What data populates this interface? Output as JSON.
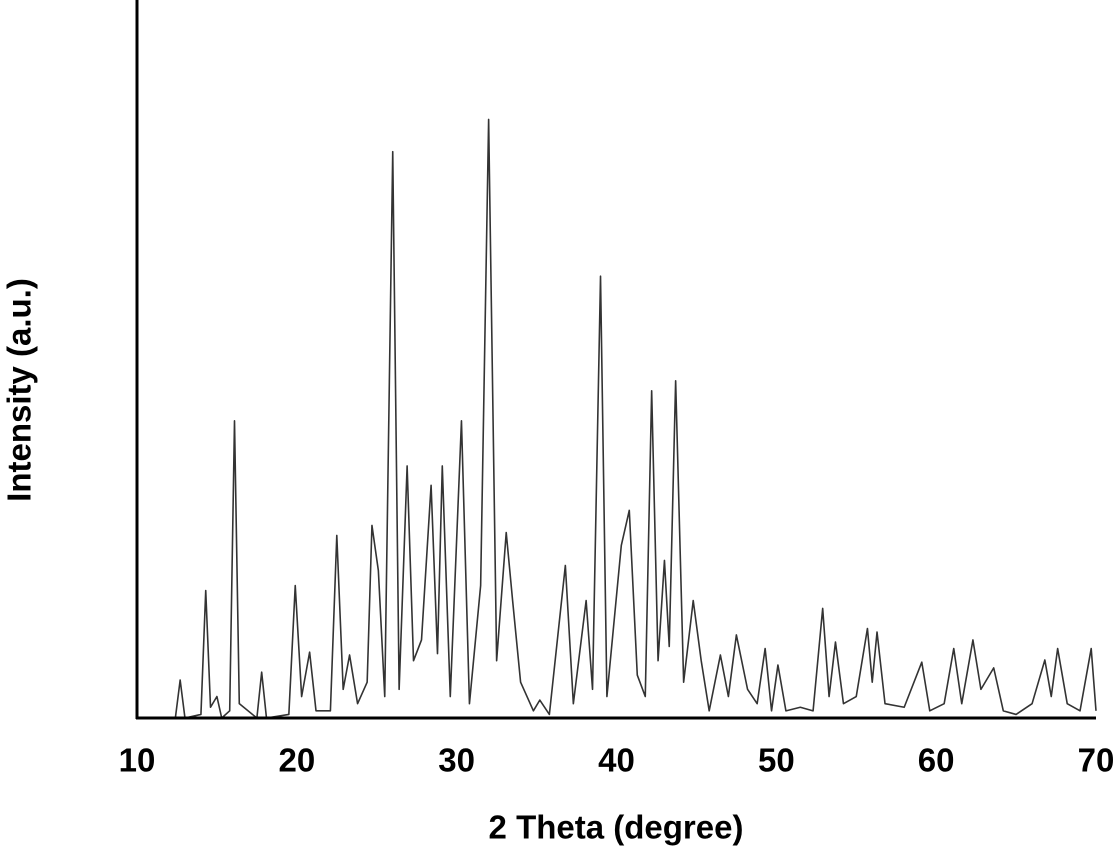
{
  "chart_data": {
    "type": "line",
    "x_label": "2 Theta (degree)",
    "y_label": "Intensity (a.u.)",
    "color": "#333333",
    "xlim": [
      10,
      70
    ],
    "xticks": [
      10,
      20,
      30,
      40,
      50,
      60,
      70
    ],
    "ylim": [
      0,
      100
    ],
    "x": [
      10,
      12.4,
      12.7,
      13.0,
      14.0,
      14.3,
      14.6,
      15.0,
      15.3,
      15.8,
      16.1,
      16.4,
      17.5,
      17.8,
      18.1,
      19.5,
      19.9,
      20.3,
      20.8,
      21.2,
      22.1,
      22.5,
      22.9,
      23.3,
      23.8,
      24.4,
      24.7,
      25.1,
      25.5,
      26.0,
      26.4,
      26.9,
      27.3,
      27.8,
      28.4,
      28.8,
      29.1,
      29.6,
      30.3,
      30.8,
      31.5,
      32.0,
      32.5,
      33.1,
      33.5,
      34.0,
      34.8,
      35.2,
      35.8,
      36.8,
      37.3,
      38.1,
      38.5,
      39.0,
      39.4,
      40.3,
      40.8,
      41.3,
      41.8,
      42.2,
      42.6,
      43.0,
      43.3,
      43.7,
      44.2,
      44.8,
      45.3,
      45.8,
      46.5,
      47.0,
      47.5,
      48.2,
      48.8,
      49.3,
      49.7,
      50.1,
      50.6,
      51.5,
      52.3,
      52.9,
      53.3,
      53.7,
      54.2,
      55.0,
      55.7,
      56.0,
      56.3,
      56.8,
      58.0,
      59.1,
      59.6,
      60.5,
      61.1,
      61.6,
      62.3,
      62.8,
      63.6,
      64.2,
      65.0,
      66.0,
      66.8,
      67.2,
      67.6,
      68.2,
      69.0,
      69.7,
      70
    ],
    "values": [
      0,
      0,
      5.3,
      0,
      0.5,
      17.8,
      1.5,
      3,
      0,
      1,
      41.5,
      2,
      0,
      6.4,
      0,
      0.5,
      18.5,
      3,
      9.2,
      1,
      1,
      25.5,
      4,
      8.8,
      2,
      5,
      26.9,
      20.6,
      3,
      79.1,
      4,
      35.2,
      8,
      10.9,
      32.5,
      9,
      35.2,
      3,
      41.5,
      2,
      18.5,
      83.6,
      8,
      25.9,
      16.4,
      5,
      1,
      2.5,
      0.5,
      21.3,
      2,
      16.4,
      4,
      61.7,
      3,
      24.1,
      29.0,
      6,
      3,
      45.7,
      8,
      22.0,
      10,
      47.1,
      5,
      16.4,
      8,
      1,
      8.8,
      3,
      11.6,
      4,
      2,
      9.7,
      1,
      7.4,
      1,
      1.5,
      1,
      15.3,
      3,
      10.6,
      2,
      3,
      12.5,
      5,
      12.0,
      2,
      1.5,
      7.8,
      1,
      2,
      9.7,
      2,
      10.9,
      4,
      7.0,
      1,
      0.5,
      2,
      8.1,
      3,
      9.7,
      2,
      1,
      9.7,
      1
    ]
  }
}
